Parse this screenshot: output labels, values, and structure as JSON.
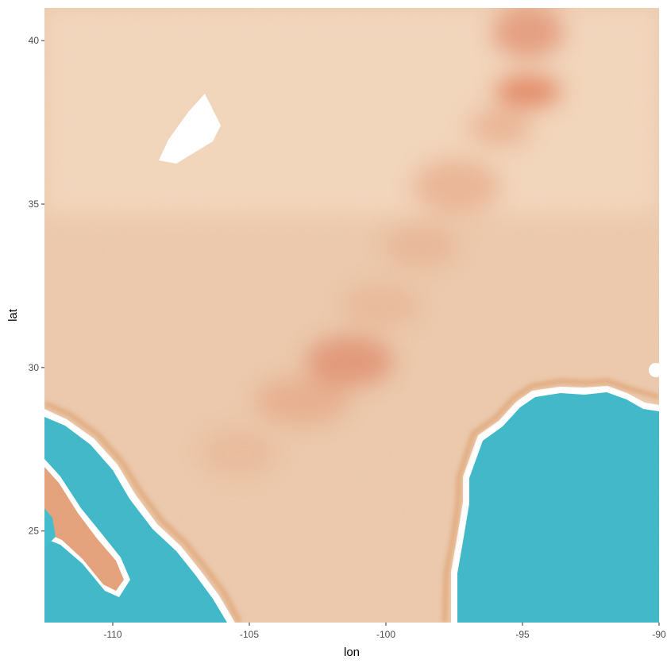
{
  "map": {
    "x_axis": {
      "title": "lon",
      "range": [
        -112.5,
        -90
      ],
      "ticks": [
        {
          "value": -110,
          "label": "-110"
        },
        {
          "value": -105,
          "label": "-105"
        },
        {
          "value": -100,
          "label": "-100"
        },
        {
          "value": -95,
          "label": "-95"
        },
        {
          "value": -90,
          "label": "-90"
        }
      ]
    },
    "y_axis": {
      "title": "lat",
      "range": [
        22.2,
        41.0
      ],
      "ticks": [
        {
          "value": 25,
          "label": "25"
        },
        {
          "value": 30,
          "label": "30"
        },
        {
          "value": 35,
          "label": "35"
        },
        {
          "value": 40,
          "label": "40"
        }
      ]
    },
    "basemap_style": "watercolor",
    "colors": {
      "land": "#f0cdb0",
      "land_dark": "#d9704e",
      "water": "#44bccc",
      "coast_outline": "#ffffff",
      "coast_shadow": "#d9955f"
    }
  }
}
